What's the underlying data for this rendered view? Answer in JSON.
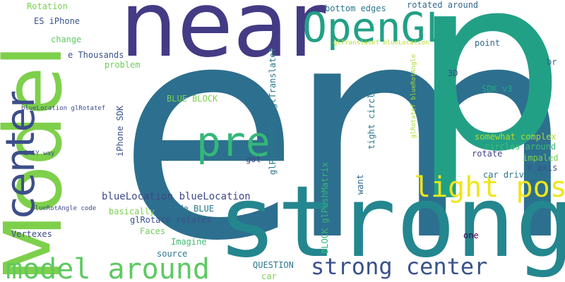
{
  "words": [
    {
      "text": "em",
      "color": "#2d6f8e"
    },
    {
      "text": "p",
      "color": "#22a086"
    },
    {
      "text": "near",
      "color": "#433b84"
    },
    {
      "text": "strong",
      "color": "#24868e"
    },
    {
      "text": "Model",
      "color": "#7ed04b"
    },
    {
      "text": "OpenGL",
      "color": "#22a086"
    },
    {
      "text": "center",
      "color": "#3d4e8a"
    },
    {
      "text": "pre",
      "color": "#35b779"
    },
    {
      "text": "light post",
      "color": "#efe51c"
    },
    {
      "text": "model around",
      "color": "#5ec962"
    },
    {
      "text": "strong center",
      "color": "#3a528b"
    },
    {
      "text": "Rotation",
      "color": "#7ad151"
    },
    {
      "text": "ES iPhone",
      "color": "#3b528b"
    },
    {
      "text": "change",
      "color": "#5ec962"
    },
    {
      "text": "e Thousands",
      "color": "#3b528b"
    },
    {
      "text": "problem",
      "color": "#6ece58"
    },
    {
      "text": "bottom edges",
      "color": "#2a788e"
    },
    {
      "text": "rotated around",
      "color": "#31688e"
    },
    {
      "text": "glTranslatef blueLocation",
      "color": "#b5de2b"
    },
    {
      "text": "point",
      "color": "#31688e"
    },
    {
      "text": "glRotatef blueRotAngle",
      "color": "#a5db36"
    },
    {
      "text": "br",
      "color": "#31688e"
    },
    {
      "text": "3D",
      "color": "#3e4989"
    },
    {
      "text": "SDK v3",
      "color": "#22a884"
    },
    {
      "text": "BLUE BLOCK",
      "color": "#7ad151"
    },
    {
      "text": "glPushMatrix glTranslatef",
      "color": "#2a788e"
    },
    {
      "text": "iPhone SDK",
      "color": "#3b528b"
    },
    {
      "text": "tight circles",
      "color": "#2a788e"
    },
    {
      "text": "somewhat complex",
      "color": "#addc30"
    },
    {
      "text": "circles around",
      "color": "#3fbc73"
    },
    {
      "text": "impaled",
      "color": "#7ad151"
    },
    {
      "text": "rotate",
      "color": "#414487"
    },
    {
      "text": "Y axis",
      "color": "#3b528b"
    },
    {
      "text": "car driving",
      "color": "#2a788e"
    },
    {
      "text": "blueLocation glRotatef",
      "color": "#3e4989"
    },
    {
      "text": "EASY way",
      "color": "#3b528b"
    },
    {
      "text": "got",
      "color": "#414487"
    },
    {
      "text": "BLOCK glPushMatrix",
      "color": "#35b779"
    },
    {
      "text": "want",
      "color": "#31688e"
    },
    {
      "text": "blueLocation blueLocation",
      "color": "#3e4989"
    },
    {
      "text": "blueRotAngle code",
      "color": "#3e4989"
    },
    {
      "text": "basically",
      "color": "#7ad151"
    },
    {
      "text": "code BLUE",
      "color": "#2a788e"
    },
    {
      "text": "glRotate rotates",
      "color": "#3b528b"
    },
    {
      "text": "Faces",
      "color": "#6ece58"
    },
    {
      "text": "Vertexes",
      "color": "#3e4989"
    },
    {
      "text": "Imagine",
      "color": "#3fbc73"
    },
    {
      "text": "source",
      "color": "#2a788e"
    },
    {
      "text": "QUESTION",
      "color": "#2a788e"
    },
    {
      "text": "car",
      "color": "#7ad151"
    },
    {
      "text": "one",
      "color": "#440154"
    }
  ]
}
